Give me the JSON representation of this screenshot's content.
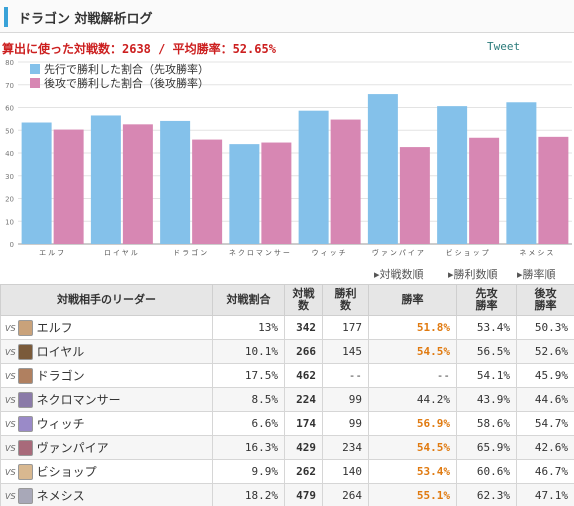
{
  "header": {
    "title": "ドラゴン 対戦解析ログ"
  },
  "summary": {
    "text": "算出に使った対戦数：2638 / 平均勝率：52.65%"
  },
  "tweet": {
    "label": "Tweet"
  },
  "colors": {
    "first": "#84c1ea",
    "second": "#d787b3",
    "win_rate": "#e07a10",
    "accent": "#39a2d8",
    "summary": "#cc1f1f"
  },
  "chart_data": {
    "type": "bar",
    "categories": [
      "エルフ",
      "ロイヤル",
      "ドラゴン",
      "ネクロマンサー",
      "ウィッチ",
      "ヴァンパイア",
      "ビショップ",
      "ネメシス"
    ],
    "series": [
      {
        "name": "先行で勝利した割合（先攻勝率）",
        "values": [
          53.4,
          56.5,
          54.1,
          43.9,
          58.6,
          65.9,
          60.6,
          62.3
        ]
      },
      {
        "name": "後攻で勝利した割合（後攻勝率）",
        "values": [
          50.3,
          52.6,
          45.9,
          44.6,
          54.7,
          42.6,
          46.7,
          47.1
        ]
      }
    ],
    "yticks": [
      0,
      10,
      20,
      30,
      40,
      50,
      60,
      70,
      80
    ],
    "ylim": [
      0,
      80
    ],
    "grid": true,
    "legend": "top-left",
    "title": "",
    "xlabel": "",
    "ylabel": ""
  },
  "sort_links": [
    "対戦数順",
    "勝利数順",
    "勝率順"
  ],
  "table": {
    "headers": [
      "対戦相手のリーダー",
      "対戦割合",
      "対戦\n数",
      "勝利\n数",
      "勝率",
      "先攻\n勝率",
      "後攻\n勝率"
    ],
    "vs_label": "VS",
    "rows": [
      {
        "leader": "エルフ",
        "ratio": "13%",
        "games": "342",
        "wins": "177",
        "win_rate": "51.8%",
        "first": "53.4%",
        "second": "50.3%",
        "avatar": "#c9a27a"
      },
      {
        "leader": "ロイヤル",
        "ratio": "10.1%",
        "games": "266",
        "wins": "145",
        "win_rate": "54.5%",
        "first": "56.5%",
        "second": "52.6%",
        "avatar": "#7a5a3a"
      },
      {
        "leader": "ドラゴン",
        "ratio": "17.5%",
        "games": "462",
        "wins": "--",
        "win_rate": "--",
        "first": "54.1%",
        "second": "45.9%",
        "avatar": "#b08060"
      },
      {
        "leader": "ネクロマンサー",
        "ratio": "8.5%",
        "games": "224",
        "wins": "99",
        "win_rate": "44.2%",
        "first": "43.9%",
        "second": "44.6%",
        "avatar": "#8a7aa8"
      },
      {
        "leader": "ウィッチ",
        "ratio": "6.6%",
        "games": "174",
        "wins": "99",
        "win_rate": "56.9%",
        "first": "58.6%",
        "second": "54.7%",
        "avatar": "#9a8ac8"
      },
      {
        "leader": "ヴァンパイア",
        "ratio": "16.3%",
        "games": "429",
        "wins": "234",
        "win_rate": "54.5%",
        "first": "65.9%",
        "second": "42.6%",
        "avatar": "#a86a7a"
      },
      {
        "leader": "ビショップ",
        "ratio": "9.9%",
        "games": "262",
        "wins": "140",
        "win_rate": "53.4%",
        "first": "60.6%",
        "second": "46.7%",
        "avatar": "#d8b890"
      },
      {
        "leader": "ネメシス",
        "ratio": "18.2%",
        "games": "479",
        "wins": "264",
        "win_rate": "55.1%",
        "first": "62.3%",
        "second": "47.1%",
        "avatar": "#a8a8b8"
      }
    ]
  }
}
